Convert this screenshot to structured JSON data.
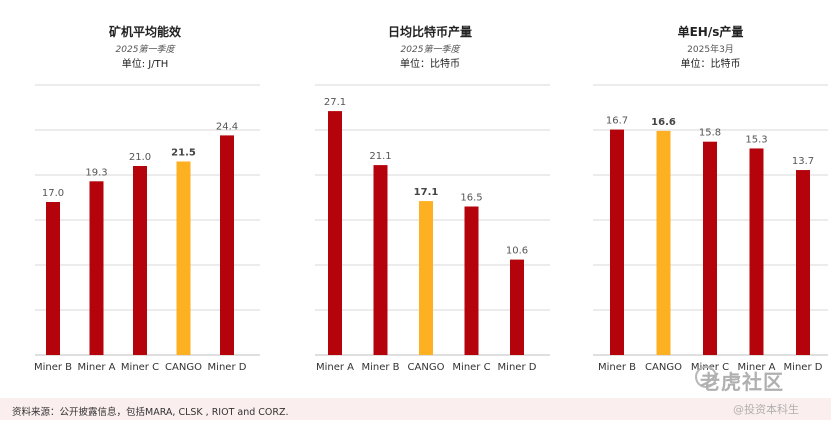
{
  "chart_data": [
    {
      "type": "bar",
      "title": "矿机平均能效",
      "subtitle": "2025第一季度",
      "unit": "单位: J/TH",
      "categories": [
        "Miner B",
        "Miner A",
        "Miner C",
        "CANGO",
        "Miner D"
      ],
      "values": [
        17.0,
        19.3,
        21.0,
        21.5,
        24.4
      ],
      "value_labels": [
        "17.0",
        "19.3",
        "21.0",
        "21.5",
        "24.4"
      ],
      "highlight": "CANGO",
      "ylim": [
        0,
        30
      ],
      "grid": true
    },
    {
      "type": "bar",
      "title": "日均比特币产量",
      "subtitle": "2025第一季度",
      "unit": "单位：比特币",
      "categories": [
        "Miner A",
        "Miner B",
        "CANGO",
        "Miner C",
        "Miner D"
      ],
      "values": [
        27.1,
        21.1,
        17.1,
        16.5,
        10.6
      ],
      "value_labels": [
        "27.1",
        "21.1",
        "17.1",
        "16.5",
        "10.6"
      ],
      "highlight": "CANGO",
      "ylim": [
        0,
        30
      ],
      "grid": true
    },
    {
      "type": "bar",
      "title": "单EH/s产量",
      "subtitle": "2025年3月",
      "unit": "单位：比特币",
      "categories": [
        "Miner B",
        "CANGO",
        "Miner C",
        "Miner A",
        "Miner D"
      ],
      "values": [
        16.7,
        16.6,
        15.8,
        15.3,
        13.7
      ],
      "value_labels": [
        "16.7",
        "16.6",
        "15.8",
        "15.3",
        "13.7"
      ],
      "highlight": "CANGO",
      "ylim": [
        0,
        20
      ],
      "grid": true
    }
  ],
  "colors": {
    "bar": "#b5030b",
    "highlight": "#fdb021",
    "grid": "#d9d9d9",
    "axis": "#bfbfbf"
  },
  "footer": {
    "source": "资料来源：公开披露信息，包括MARA, CLSK , RIOT and CORZ.",
    "watermark_main": "老虎社区",
    "watermark_sub": "@投资本科生"
  }
}
